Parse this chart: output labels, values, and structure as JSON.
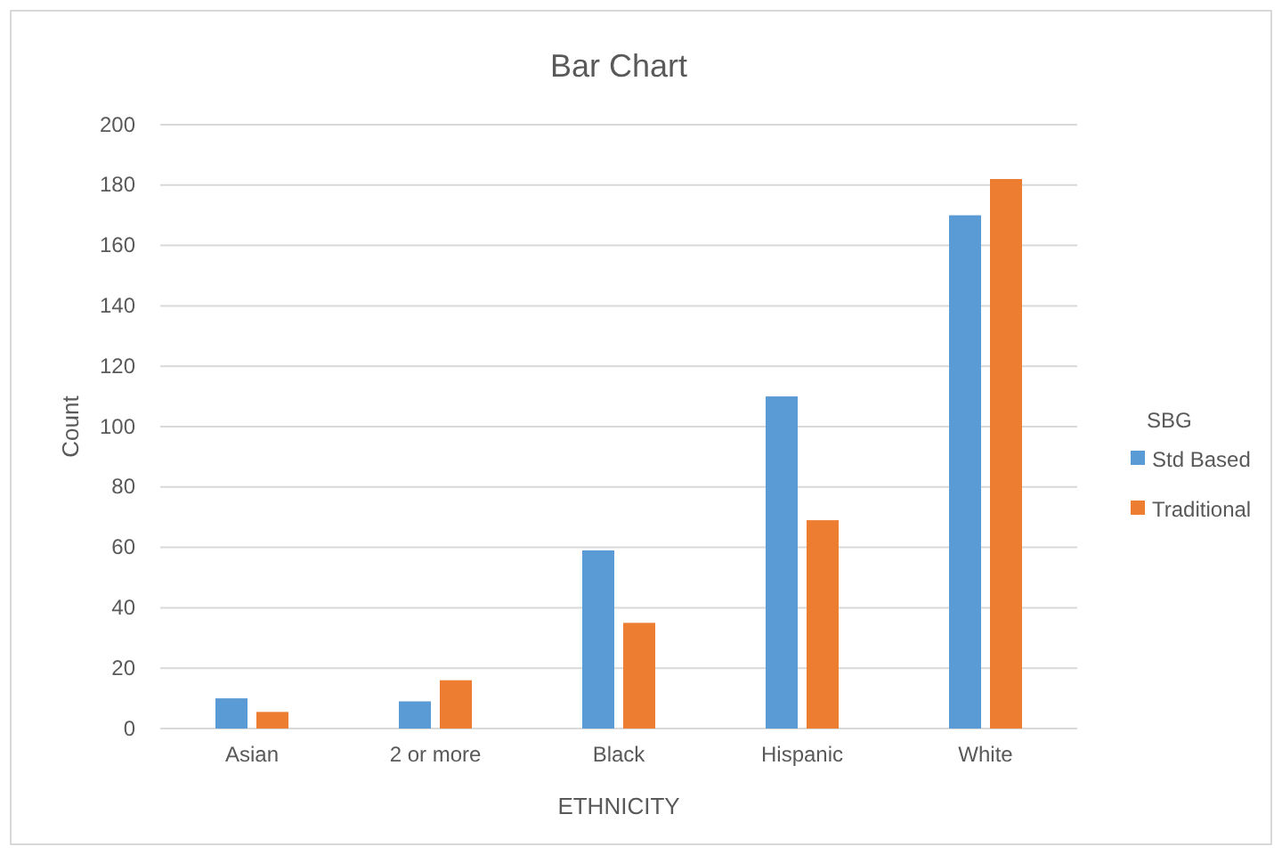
{
  "chart_data": {
    "type": "bar",
    "title": "Bar Chart",
    "xlabel": "ETHNICITY",
    "ylabel": "Count",
    "legend_title": "SBG",
    "categories": [
      "Asian",
      "2 or more",
      "Black",
      "Hispanic",
      "White"
    ],
    "series": [
      {
        "name": "Std Based",
        "color": "#5b9bd5",
        "values": [
          10,
          9,
          59,
          110,
          170
        ]
      },
      {
        "name": "Traditional",
        "color": "#ed7d31",
        "values": [
          5.5,
          16,
          35,
          69,
          182
        ]
      }
    ],
    "ylim": [
      0,
      200
    ],
    "yticks": [
      0,
      20,
      40,
      60,
      80,
      100,
      120,
      140,
      160,
      180,
      200
    ],
    "grid": "y",
    "legend": "right"
  }
}
